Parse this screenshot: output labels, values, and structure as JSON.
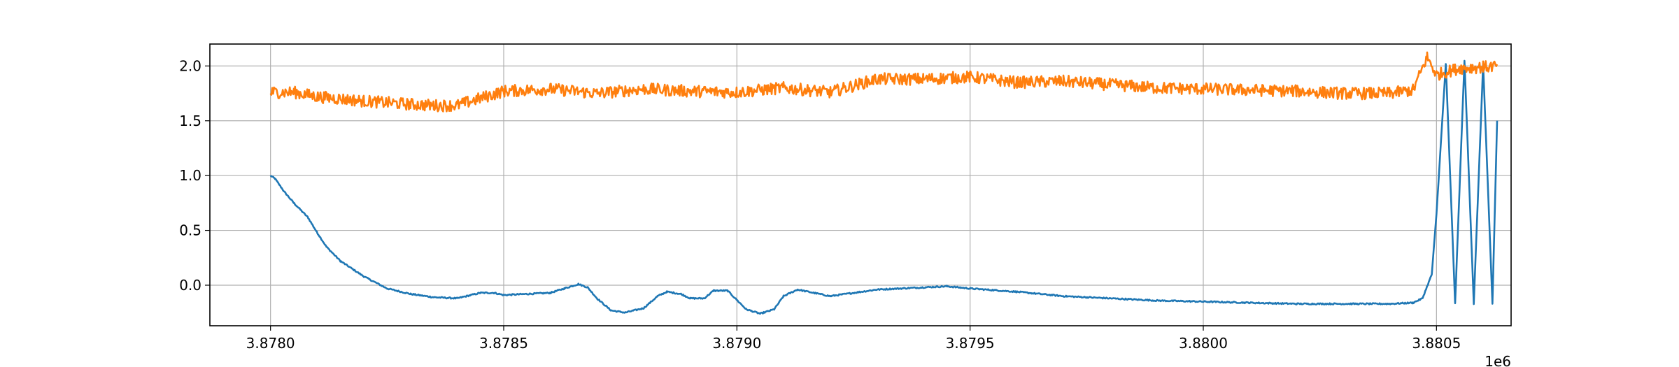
{
  "chart_data": {
    "type": "line",
    "title": "",
    "xlabel": "",
    "ylabel": "",
    "x_offset_label": "1e6",
    "xlim": [
      3.87787,
      3.88066
    ],
    "ylim": [
      -0.37,
      2.2
    ],
    "grid": true,
    "legend": "none",
    "xticks": [
      3.878,
      3.8785,
      3.879,
      3.8795,
      3.88,
      3.8805
    ],
    "xtick_labels": [
      "3.8780",
      "3.8785",
      "3.8790",
      "3.8795",
      "3.8800",
      "3.8805"
    ],
    "yticks": [
      0.0,
      0.5,
      1.0,
      1.5,
      2.0
    ],
    "ytick_labels": [
      "0.0",
      "0.5",
      "1.0",
      "1.5",
      "2.0"
    ],
    "series": [
      {
        "color": "#1f77b4",
        "noise": 0.006,
        "x": [
          3.878,
          3.87801,
          3.87803,
          3.87805,
          3.87808,
          3.8781,
          3.87812,
          3.87815,
          3.8782,
          3.87825,
          3.8783,
          3.87835,
          3.8784,
          3.87845,
          3.87848,
          3.8785,
          3.87855,
          3.8786,
          3.87863,
          3.87866,
          3.87868,
          3.8787,
          3.87873,
          3.87876,
          3.8788,
          3.87883,
          3.87885,
          3.87888,
          3.8789,
          3.87893,
          3.87895,
          3.87898,
          3.87902,
          3.87905,
          3.87908,
          3.8791,
          3.87913,
          3.8792,
          3.8793,
          3.8794,
          3.87945,
          3.8795,
          3.8796,
          3.8797,
          3.8798,
          3.8799,
          3.88,
          3.8801,
          3.8802,
          3.8803,
          3.8804,
          3.88045,
          3.88047,
          3.88049,
          3.8805,
          3.88052,
          3.88054,
          3.88056,
          3.88058,
          3.8806,
          3.88062,
          3.88063
        ],
        "y": [
          1.0,
          0.97,
          0.85,
          0.75,
          0.62,
          0.48,
          0.35,
          0.22,
          0.08,
          -0.03,
          -0.08,
          -0.11,
          -0.12,
          -0.07,
          -0.07,
          -0.09,
          -0.08,
          -0.07,
          -0.03,
          0.01,
          -0.02,
          -0.12,
          -0.23,
          -0.25,
          -0.21,
          -0.1,
          -0.06,
          -0.08,
          -0.12,
          -0.12,
          -0.05,
          -0.05,
          -0.22,
          -0.26,
          -0.22,
          -0.1,
          -0.04,
          -0.1,
          -0.04,
          -0.02,
          -0.01,
          -0.03,
          -0.06,
          -0.1,
          -0.12,
          -0.14,
          -0.15,
          -0.16,
          -0.17,
          -0.17,
          -0.17,
          -0.16,
          -0.12,
          0.1,
          0.65,
          2.02,
          -0.17,
          2.05,
          -0.17,
          2.02,
          -0.17,
          1.5
        ]
      },
      {
        "color": "#ff7f0e",
        "noise": 0.055,
        "x": [
          3.878,
          3.87805,
          3.8781,
          3.8782,
          3.8783,
          3.87835,
          3.8784,
          3.8785,
          3.8786,
          3.8787,
          3.8788,
          3.8789,
          3.879,
          3.8791,
          3.8792,
          3.8793,
          3.8794,
          3.8795,
          3.8796,
          3.8797,
          3.8798,
          3.8799,
          3.88,
          3.8801,
          3.8802,
          3.8803,
          3.8804,
          3.88045,
          3.88048,
          3.8805,
          3.88055,
          3.8806,
          3.88063
        ],
        "y": [
          1.76,
          1.76,
          1.72,
          1.68,
          1.65,
          1.64,
          1.64,
          1.77,
          1.79,
          1.75,
          1.79,
          1.77,
          1.76,
          1.8,
          1.76,
          1.88,
          1.88,
          1.9,
          1.85,
          1.86,
          1.83,
          1.8,
          1.79,
          1.78,
          1.77,
          1.75,
          1.75,
          1.78,
          2.08,
          1.92,
          1.98,
          1.99,
          2.0
        ]
      }
    ]
  }
}
